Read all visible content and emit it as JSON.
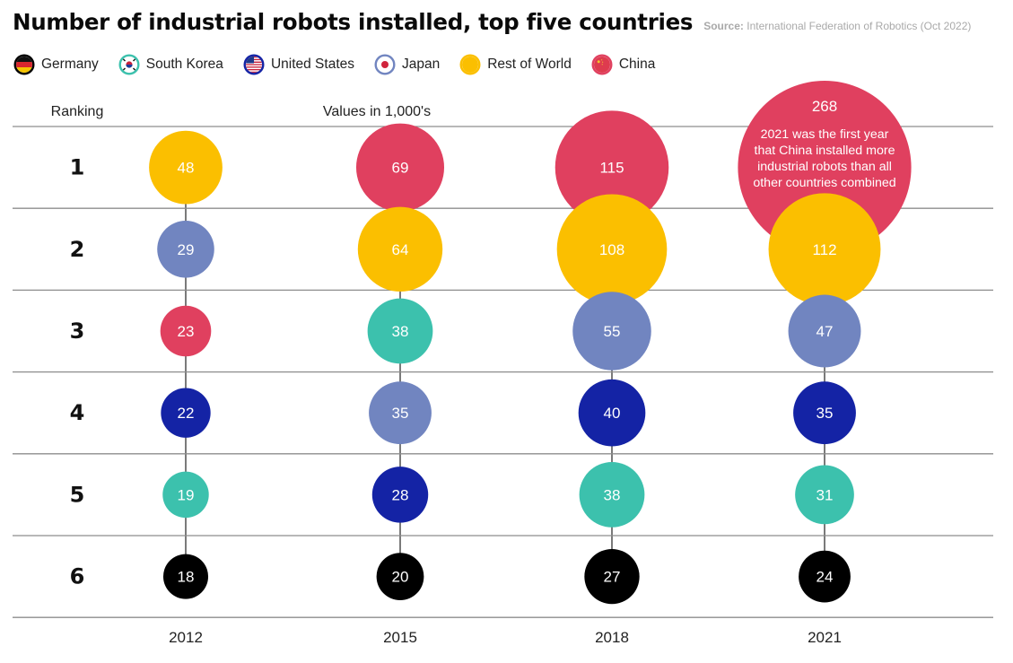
{
  "chart_data": {
    "type": "bubble-ranking",
    "title": "Number of industrial robots installed, top five countries",
    "source_label": "Source:",
    "source_text": "International Federation of Robotics (Oct 2022)",
    "row_axis_label": "Ranking",
    "units_note": "Values in 1,000's",
    "ranks": [
      "1",
      "2",
      "3",
      "4",
      "5",
      "6"
    ],
    "years": [
      "2012",
      "2015",
      "2018",
      "2021"
    ],
    "legend": [
      {
        "key": "germany",
        "name": "Germany",
        "icon": "germany-flag-icon",
        "fill": "#000000"
      },
      {
        "key": "south_korea",
        "name": "South Korea",
        "icon": "south-korea-flag-icon",
        "fill": "#3cc1ad"
      },
      {
        "key": "united_states",
        "name": "United States",
        "icon": "united-states-flag-icon",
        "fill": "#1423a5"
      },
      {
        "key": "japan",
        "name": "Japan",
        "icon": "japan-flag-icon",
        "fill": "#7185c0"
      },
      {
        "key": "rest_of_world",
        "name": "Rest of World",
        "icon": "rest-of-world-dot-icon",
        "fill": "#fbbf00"
      },
      {
        "key": "china",
        "name": "China",
        "icon": "china-flag-icon",
        "fill": "#e0405f"
      }
    ],
    "columns": [
      {
        "year": "2012",
        "bubbles": [
          {
            "rank": 1,
            "key": "rest_of_world",
            "value": 48
          },
          {
            "rank": 2,
            "key": "japan",
            "value": 29
          },
          {
            "rank": 3,
            "key": "china",
            "value": 23
          },
          {
            "rank": 4,
            "key": "united_states",
            "value": 22
          },
          {
            "rank": 5,
            "key": "south_korea",
            "value": 19
          },
          {
            "rank": 6,
            "key": "germany",
            "value": 18
          }
        ]
      },
      {
        "year": "2015",
        "bubbles": [
          {
            "rank": 1,
            "key": "china",
            "value": 69
          },
          {
            "rank": 2,
            "key": "rest_of_world",
            "value": 64
          },
          {
            "rank": 3,
            "key": "south_korea",
            "value": 38
          },
          {
            "rank": 4,
            "key": "japan",
            "value": 35
          },
          {
            "rank": 5,
            "key": "united_states",
            "value": 28
          },
          {
            "rank": 6,
            "key": "germany",
            "value": 20
          }
        ]
      },
      {
        "year": "2018",
        "bubbles": [
          {
            "rank": 1,
            "key": "china",
            "value": 115
          },
          {
            "rank": 2,
            "key": "rest_of_world",
            "value": 108
          },
          {
            "rank": 3,
            "key": "japan",
            "value": 55
          },
          {
            "rank": 4,
            "key": "united_states",
            "value": 40
          },
          {
            "rank": 5,
            "key": "south_korea",
            "value": 38
          },
          {
            "rank": 6,
            "key": "germany",
            "value": 27
          }
        ]
      },
      {
        "year": "2021",
        "bubbles": [
          {
            "rank": 1,
            "key": "china",
            "value": 268,
            "note": "2021 was the first year that China installed more industrial robots than all other countries combined"
          },
          {
            "rank": 2,
            "key": "rest_of_world",
            "value": 112
          },
          {
            "rank": 3,
            "key": "japan",
            "value": 47
          },
          {
            "rank": 4,
            "key": "united_states",
            "value": 35
          },
          {
            "rank": 5,
            "key": "south_korea",
            "value": 31
          },
          {
            "rank": 6,
            "key": "germany",
            "value": 24
          }
        ]
      }
    ]
  }
}
